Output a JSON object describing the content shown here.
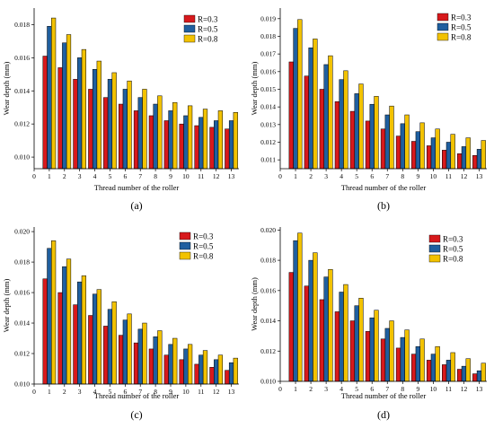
{
  "colors": {
    "R=0.3": "#d7191c",
    "R=0.5": "#1f5f9f",
    "R=0.8": "#f2c200"
  },
  "chart_data": [
    {
      "type": "bar",
      "panel_label": "(a)",
      "xlabel": "Thread number of the roller",
      "ylabel": "Wear depth (mm)",
      "x_ticks": [
        "0",
        "1",
        "2",
        "3",
        "4",
        "5",
        "6",
        "7",
        "8",
        "9",
        "10",
        "11",
        "12",
        "13"
      ],
      "y_ticks": [
        "0.010",
        "0.012",
        "0.014",
        "0.016",
        "0.018"
      ],
      "categories": [
        "1",
        "2",
        "3",
        "4",
        "5",
        "6",
        "7",
        "8",
        "9",
        "10",
        "11",
        "12",
        "13"
      ],
      "ylim": [
        0.0093,
        0.019
      ],
      "legend_position": "top-right",
      "series": [
        {
          "name": "R=0.3",
          "values": [
            0.0161,
            0.0154,
            0.0147,
            0.0141,
            0.0136,
            0.0132,
            0.0128,
            0.0125,
            0.0122,
            0.012,
            0.0119,
            0.0118,
            0.0117
          ]
        },
        {
          "name": "R=0.5",
          "values": [
            0.0179,
            0.0169,
            0.016,
            0.0153,
            0.0147,
            0.0141,
            0.0136,
            0.0132,
            0.0128,
            0.0125,
            0.0124,
            0.0122,
            0.0122
          ]
        },
        {
          "name": "R=0.8",
          "values": [
            0.0184,
            0.0174,
            0.0165,
            0.0158,
            0.0151,
            0.0146,
            0.0141,
            0.0137,
            0.0133,
            0.0131,
            0.0129,
            0.0128,
            0.0127
          ]
        }
      ]
    },
    {
      "type": "bar",
      "panel_label": "(b)",
      "xlabel": "Thread number of the roller",
      "ylabel": "Wear depth (mm)",
      "x_ticks": [
        "0",
        "1",
        "2",
        "3",
        "4",
        "5",
        "6",
        "7",
        "8",
        "9",
        "10",
        "11",
        "12",
        "13"
      ],
      "y_ticks": [
        "0.011",
        "0.012",
        "0.013",
        "0.014",
        "0.015",
        "0.016",
        "0.017",
        "0.018",
        "0.019"
      ],
      "categories": [
        "1",
        "2",
        "3",
        "4",
        "5",
        "6",
        "7",
        "8",
        "9",
        "10",
        "11",
        "12",
        "13"
      ],
      "ylim": [
        0.0105,
        0.0196
      ],
      "legend_position": "top-right",
      "series": [
        {
          "name": "R=0.3",
          "values": [
            0.01655,
            0.01575,
            0.015,
            0.0143,
            0.01375,
            0.0132,
            0.01275,
            0.01235,
            0.01205,
            0.0118,
            0.01155,
            0.01135,
            0.01125
          ]
        },
        {
          "name": "R=0.5",
          "values": [
            0.01845,
            0.01735,
            0.0164,
            0.01555,
            0.01475,
            0.01415,
            0.01355,
            0.01305,
            0.0126,
            0.01225,
            0.012,
            0.01175,
            0.0116
          ]
        },
        {
          "name": "R=0.8",
          "values": [
            0.01895,
            0.01785,
            0.0169,
            0.01605,
            0.0153,
            0.0146,
            0.01405,
            0.01355,
            0.0131,
            0.01275,
            0.01245,
            0.01225,
            0.0121
          ]
        }
      ]
    },
    {
      "type": "bar",
      "panel_label": "(c)",
      "xlabel": "Thread number of the roller",
      "ylabel": "Wear depth (mm)",
      "x_ticks": [
        "0",
        "1",
        "2",
        "3",
        "4",
        "5",
        "6",
        "7",
        "8",
        "9",
        "10",
        "11",
        "12",
        "13"
      ],
      "y_ticks": [
        "0.010",
        "0.012",
        "0.014",
        "0.016",
        "0.018",
        "0.020"
      ],
      "categories": [
        "1",
        "2",
        "3",
        "4",
        "5",
        "6",
        "7",
        "8",
        "9",
        "10",
        "11",
        "12",
        "13"
      ],
      "ylim": [
        0.01,
        0.0203
      ],
      "legend_position": "top-right",
      "series": [
        {
          "name": "R=0.3",
          "values": [
            0.0169,
            0.016,
            0.0152,
            0.0145,
            0.0138,
            0.0132,
            0.0127,
            0.0123,
            0.0119,
            0.0116,
            0.0113,
            0.0111,
            0.0109
          ]
        },
        {
          "name": "R=0.5",
          "values": [
            0.0189,
            0.0177,
            0.0167,
            0.0159,
            0.0149,
            0.0142,
            0.0136,
            0.0131,
            0.0126,
            0.0123,
            0.0119,
            0.0116,
            0.0114
          ]
        },
        {
          "name": "R=0.8",
          "values": [
            0.0194,
            0.0182,
            0.0171,
            0.0162,
            0.0154,
            0.0146,
            0.014,
            0.0135,
            0.013,
            0.0126,
            0.0122,
            0.0119,
            0.0117
          ]
        }
      ]
    },
    {
      "type": "bar",
      "panel_label": "(d)",
      "xlabel": "Thread number of the roller",
      "ylabel": "Wear depth (mm)",
      "x_ticks": [
        "0",
        "1",
        "2",
        "3",
        "4",
        "5",
        "6",
        "7",
        "8",
        "9",
        "10",
        "11",
        "12",
        "13"
      ],
      "y_ticks": [
        "0.010",
        "0.012",
        "0.014",
        "0.016",
        "0.018",
        "0.020"
      ],
      "categories": [
        "1",
        "2",
        "3",
        "4",
        "5",
        "6",
        "7",
        "8",
        "9",
        "10",
        "11",
        "12",
        "13"
      ],
      "ylim": [
        0.01,
        0.0202
      ],
      "legend_position": "top-right",
      "series": [
        {
          "name": "R=0.3",
          "values": [
            0.0172,
            0.0163,
            0.0154,
            0.0146,
            0.014,
            0.0133,
            0.0128,
            0.0122,
            0.0118,
            0.0114,
            0.0111,
            0.0108,
            0.0105
          ]
        },
        {
          "name": "R=0.5",
          "values": [
            0.0193,
            0.018,
            0.0169,
            0.0159,
            0.015,
            0.0142,
            0.0135,
            0.0129,
            0.0123,
            0.0118,
            0.0114,
            0.011,
            0.0107
          ]
        },
        {
          "name": "R=0.8",
          "values": [
            0.0198,
            0.0185,
            0.0174,
            0.0164,
            0.0155,
            0.0147,
            0.014,
            0.0134,
            0.0128,
            0.0123,
            0.0119,
            0.0115,
            0.0112
          ]
        }
      ]
    }
  ]
}
